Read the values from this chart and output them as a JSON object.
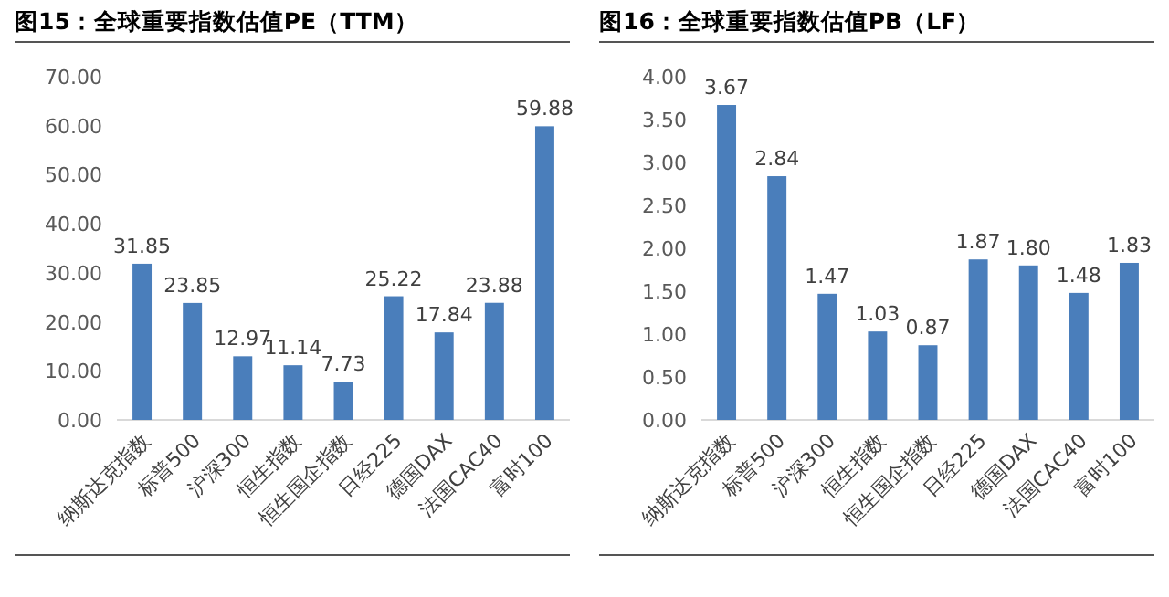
{
  "chart_data": [
    {
      "type": "bar",
      "title": "图15：全球重要指数估值PE（TTM）",
      "categories": [
        "纳斯达克指数",
        "标普500",
        "沪深300",
        "恒生指数",
        "恒生国企指数",
        "日经225",
        "德国DAX",
        "法国CAC40",
        "富时100"
      ],
      "values": [
        31.85,
        23.85,
        12.97,
        11.14,
        7.73,
        25.22,
        17.84,
        23.88,
        59.88
      ],
      "value_labels": [
        "31.85",
        "23.85",
        "12.97",
        "11.14",
        "7.73",
        "25.22",
        "17.84",
        "23.88",
        "59.88"
      ],
      "color": "#4a7ebb",
      "ylim": [
        0,
        70
      ],
      "yticks": [
        {
          "value": 0,
          "label": "0.00"
        },
        {
          "value": 10,
          "label": "10.00"
        },
        {
          "value": 20,
          "label": "20.00"
        },
        {
          "value": 30,
          "label": "30.00"
        },
        {
          "value": 40,
          "label": "40.00"
        },
        {
          "value": 50,
          "label": "50.00"
        },
        {
          "value": 60,
          "label": "60.00"
        },
        {
          "value": 70,
          "label": "70.00"
        }
      ]
    },
    {
      "type": "bar",
      "title": "图16：全球重要指数估值PB（LF）",
      "categories": [
        "纳斯达克指数",
        "标普500",
        "沪深300",
        "恒生指数",
        "恒生国企指数",
        "日经225",
        "德国DAX",
        "法国CAC40",
        "富时100"
      ],
      "values": [
        3.67,
        2.84,
        1.47,
        1.03,
        0.87,
        1.87,
        1.8,
        1.48,
        1.83
      ],
      "value_labels": [
        "3.67",
        "2.84",
        "1.47",
        "1.03",
        "0.87",
        "1.87",
        "1.80",
        "1.48",
        "1.83"
      ],
      "color": "#4a7ebb",
      "ylim": [
        0,
        4
      ],
      "yticks": [
        {
          "value": 0,
          "label": "0.00"
        },
        {
          "value": 0.5,
          "label": "0.50"
        },
        {
          "value": 1,
          "label": "1.00"
        },
        {
          "value": 1.5,
          "label": "1.50"
        },
        {
          "value": 2,
          "label": "2.00"
        },
        {
          "value": 2.5,
          "label": "2.50"
        },
        {
          "value": 3,
          "label": "3.00"
        },
        {
          "value": 3.5,
          "label": "3.50"
        },
        {
          "value": 4,
          "label": "4.00"
        }
      ]
    }
  ]
}
